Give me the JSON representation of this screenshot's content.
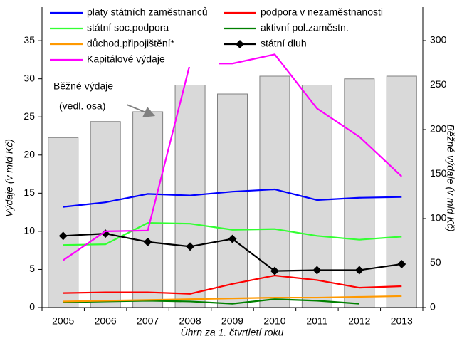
{
  "chart_data": {
    "type": "line",
    "y_label": "Výdaje (v mld Kč)",
    "y2_label": "Běžné výdaje (v mld Kč)",
    "x_label": "Úhrn za 1. čtvrtletí roku",
    "categories": [
      "2005",
      "2006",
      "2007",
      "2008",
      "2009",
      "2010",
      "2011",
      "2012",
      "2013"
    ],
    "ylim": [
      0,
      39.4
    ],
    "yticks": [
      0,
      5,
      10,
      15,
      20,
      25,
      30,
      35
    ],
    "y2lim": [
      0,
      337.6
    ],
    "y2ticks": [
      0,
      50,
      100,
      150,
      200,
      250,
      300
    ],
    "bars": {
      "axis": "y2",
      "color": "#d9d9d9",
      "values": [
        191,
        209,
        220,
        250,
        240,
        260,
        250,
        257,
        260
      ]
    },
    "annotations": [
      "Běžné výdaje",
      "(vedl. osa)"
    ],
    "series": [
      {
        "name": "platy státních zaměstnanců",
        "color": "#0000ff",
        "values": [
          13.2,
          13.8,
          14.9,
          14.7,
          15.2,
          15.5,
          14.1,
          14.4,
          14.5
        ]
      },
      {
        "name": "podpora v nezaměstnanosti",
        "color": "#ff0000",
        "values": [
          1.9,
          2.0,
          2.0,
          1.8,
          3.1,
          4.2,
          3.6,
          2.6,
          2.8
        ]
      },
      {
        "name": "státní soc.podpora",
        "color": "#33ff33",
        "values": [
          8.2,
          8.3,
          11.1,
          11.0,
          10.2,
          10.3,
          9.4,
          8.9,
          9.3
        ]
      },
      {
        "name": "aktivní pol.zaměstn.",
        "color": "#008000",
        "values": [
          0.7,
          0.8,
          0.9,
          0.8,
          0.5,
          1.1,
          0.9,
          0.5,
          null
        ]
      },
      {
        "name": "důchod.připojištění*",
        "color": "#ff9900",
        "values": [
          0.8,
          0.9,
          1.0,
          1.1,
          1.2,
          1.3,
          1.3,
          1.4,
          1.5
        ]
      },
      {
        "name": "státní dluh",
        "color": "#000000",
        "marker": "diamond",
        "values": [
          9.4,
          9.7,
          8.6,
          8.0,
          9.0,
          4.8,
          4.9,
          4.9,
          5.7
        ]
      },
      {
        "name": "Kapitálové výdaje",
        "color": "#ff00ff",
        "values": [
          6.2,
          10.0,
          10.1,
          32.0,
          32.0,
          33.2,
          26.1,
          22.4,
          17.2
        ]
      }
    ]
  }
}
